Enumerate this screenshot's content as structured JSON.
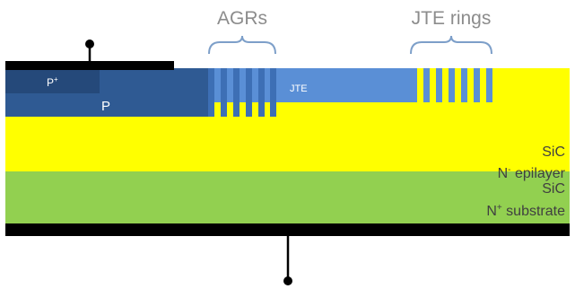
{
  "annotations": {
    "agrs": "AGRs",
    "jte_rings": "JTE rings"
  },
  "regions": {
    "p_plus": {
      "label": "P",
      "superscript": "+"
    },
    "p": {
      "label": "P"
    },
    "jte": {
      "label": "JTE"
    },
    "epilayer": {
      "line1": "SiC",
      "line2_main": "N",
      "line2_sup": "-",
      "line2_rest": " epilayer"
    },
    "substrate": {
      "line1": "SiC",
      "line2_main": "N",
      "line2_sup": "+",
      "line2_rest": " substrate"
    }
  },
  "counts": {
    "agr_stripes": 6,
    "jte_ring_stripes": 6
  },
  "colors": {
    "epilayer": "#ffff00",
    "substrate": "#92d050",
    "p_region": "#2f5a93",
    "p_plus_region": "#25497a",
    "jte": "#5a8fd6",
    "agr_stripe": "#3d6fb5",
    "contact": "#000000",
    "bracket": "#7d9fc9",
    "annotation_text": "#8c8c8c"
  }
}
